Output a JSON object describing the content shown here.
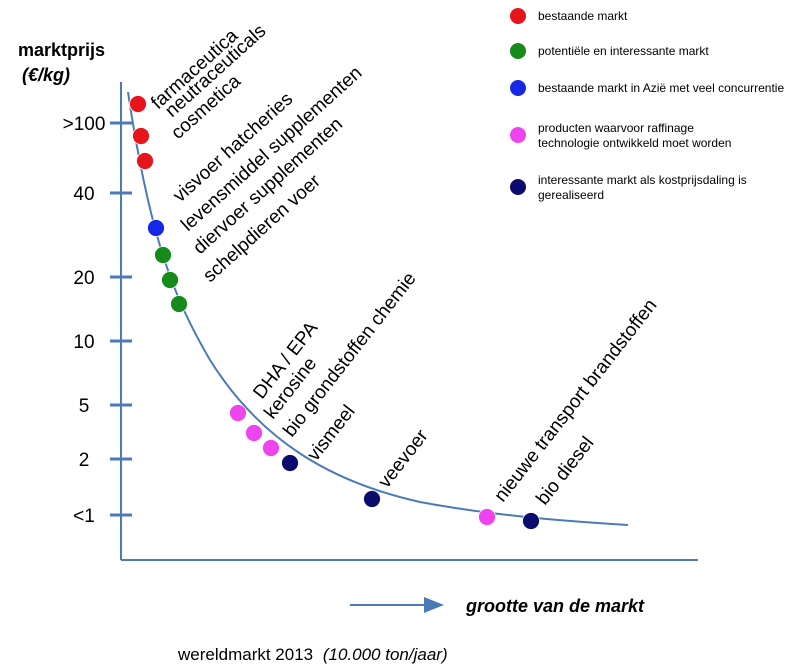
{
  "chart_data": {
    "type": "scatter",
    "title": "",
    "ylabel": "marktprijs",
    "ylabel_unit": "(€/kg)",
    "xlabel": "grootte van de markt",
    "footer": "wereldmarkt 2013",
    "footer_unit": "(10.000 ton/jaar)",
    "y_ticks": [
      ">100",
      "40",
      "20",
      "10",
      "5",
      "2",
      "<1"
    ],
    "curve": "descending price-volume curve",
    "legend": [
      {
        "name": "bestaande markt",
        "color": "#e8141c"
      },
      {
        "name": "potentiële en interessante markt",
        "color": "#168a1a"
      },
      {
        "name": "bestaande markt in Azië met veel concurrentie",
        "color": "#1428e6"
      },
      {
        "name": "producten waarvoor raffinage technologie ontwikkeld moet worden",
        "color": "#ee44ee"
      },
      {
        "name": "interessante markt als kostprijsdaling is gerealiseerd",
        "color": "#0c0c6e"
      }
    ],
    "points": [
      {
        "label": "farmaceutica",
        "category": 0
      },
      {
        "label": "neutraceuticals",
        "category": 0
      },
      {
        "label": "cosmetica",
        "category": 0
      },
      {
        "label": "visvoer hatcheries",
        "category": 2
      },
      {
        "label": "levensmiddel supplementen",
        "category": 1
      },
      {
        "label": "diervoer supplementen",
        "category": 1
      },
      {
        "label": "schelpdieren voer",
        "category": 1
      },
      {
        "label": "DHA / EPA",
        "category": 3
      },
      {
        "label": "kerosine",
        "category": 3
      },
      {
        "label": "bio grondstoffen chemie",
        "category": 3
      },
      {
        "label": "vismeel",
        "category": 4
      },
      {
        "label": "veevoer",
        "category": 4
      },
      {
        "label": "nieuwe transport brandstoffen",
        "category": 3
      },
      {
        "label": "bio diesel",
        "category": 4
      }
    ],
    "axis_color": "#4a7bb7",
    "grid": false
  }
}
